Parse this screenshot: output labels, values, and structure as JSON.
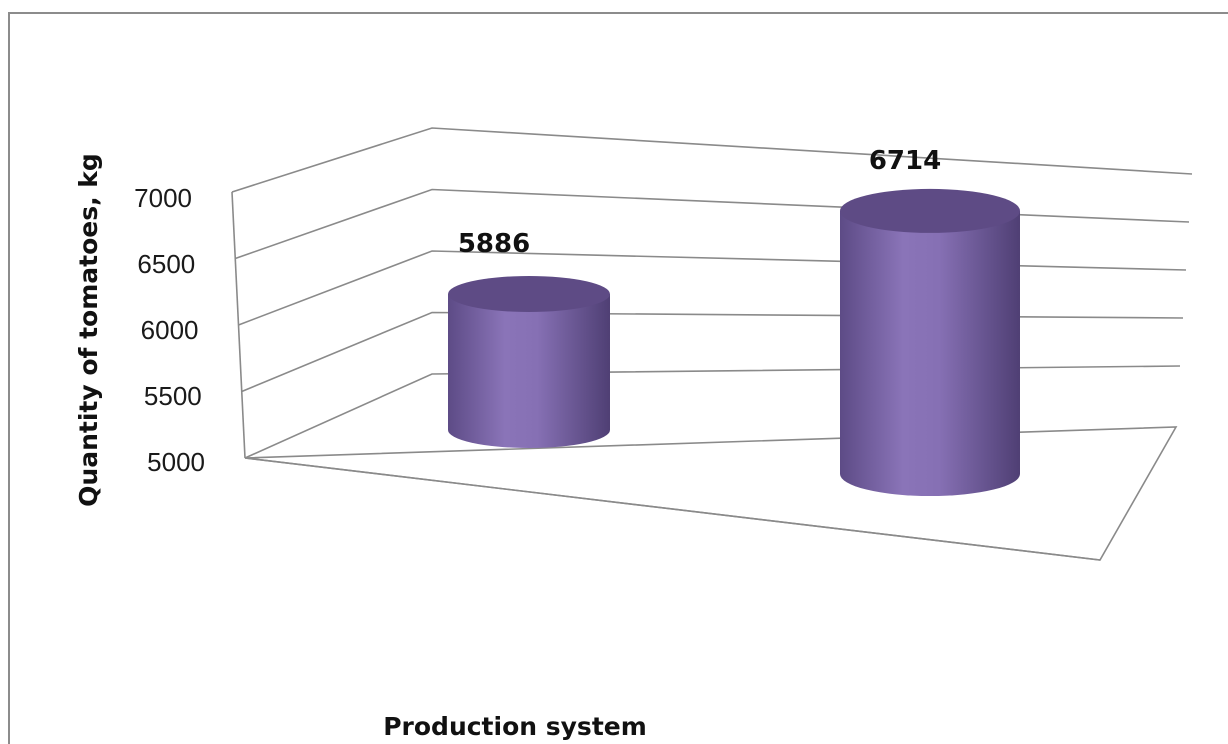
{
  "chart_data": {
    "type": "bar",
    "style": "3d-cylinder",
    "categories": [
      "",
      ""
    ],
    "series": [
      {
        "values": [
          5886,
          6714
        ],
        "color": "#7e68a8"
      }
    ],
    "data_labels": [
      "5886",
      "6714"
    ],
    "xlabel": "Production system",
    "ylabel": "Quantity of tomatoes, kg",
    "ylim": [
      5000,
      7000
    ],
    "yticks": [
      {
        "value": 5000,
        "label": "5000"
      },
      {
        "value": 5500,
        "label": "5500"
      },
      {
        "value": 6000,
        "label": "6000"
      },
      {
        "value": 6500,
        "label": "6500"
      },
      {
        "value": 7000,
        "label": "7000"
      }
    ],
    "grid": true,
    "legend": "none"
  }
}
